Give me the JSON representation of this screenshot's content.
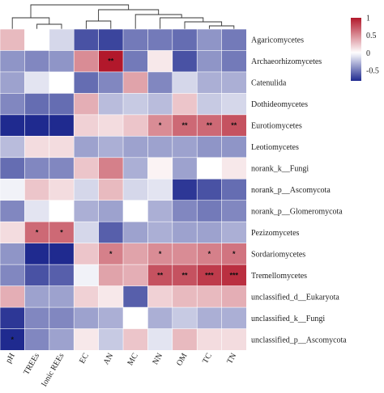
{
  "chart_data": {
    "type": "heatmap",
    "columns": [
      "pH",
      "TREEs",
      "Ionic REEs",
      "EC",
      "AN",
      "MC",
      "NN",
      "OM",
      "TC",
      "TN"
    ],
    "rows": [
      "Agaricomycetes",
      "Archaeorhizomycetes",
      "Catenulida",
      "Dothideomycetes",
      "Eurotiomycetes",
      "Leotiomycetes",
      "norank_k__Fungi",
      "norank_p__Ascomycota",
      "norank_p__Glomeromycota",
      "Pezizomycetes",
      "Sordariomycetes",
      "Tremellomycetes",
      "unclassified_d__Eukaryota",
      "unclassified_k__Fungi",
      "unclassified_p__Ascomycota"
    ],
    "values": [
      [
        0.3,
        0.0,
        -0.15,
        -0.65,
        -0.7,
        -0.5,
        -0.5,
        -0.55,
        -0.4,
        -0.5
      ],
      [
        -0.4,
        -0.45,
        -0.4,
        0.5,
        1.0,
        -0.5,
        0.1,
        -0.65,
        -0.4,
        -0.5
      ],
      [
        -0.35,
        -0.1,
        0.0,
        -0.55,
        -0.45,
        0.4,
        -0.45,
        -0.15,
        -0.3,
        -0.3
      ],
      [
        -0.45,
        -0.55,
        -0.55,
        0.35,
        -0.25,
        -0.2,
        -0.25,
        0.25,
        -0.2,
        -0.15
      ],
      [
        -0.85,
        -0.85,
        -0.8,
        0.2,
        0.15,
        0.25,
        0.5,
        0.65,
        0.65,
        0.75
      ],
      [
        -0.25,
        0.15,
        0.15,
        -0.35,
        -0.3,
        -0.35,
        -0.35,
        -0.35,
        -0.4,
        -0.4
      ],
      [
        -0.55,
        -0.45,
        -0.45,
        0.25,
        0.55,
        -0.3,
        0.05,
        -0.35,
        0.0,
        0.1
      ],
      [
        -0.05,
        0.25,
        0.15,
        -0.15,
        0.3,
        -0.15,
        -0.1,
        -0.75,
        -0.65,
        -0.55
      ],
      [
        -0.45,
        -0.1,
        0.0,
        -0.3,
        -0.35,
        0.0,
        -0.3,
        -0.45,
        -0.5,
        -0.45
      ],
      [
        0.15,
        0.65,
        0.65,
        -0.15,
        -0.6,
        -0.35,
        -0.3,
        -0.35,
        -0.35,
        -0.3
      ],
      [
        -0.4,
        -0.85,
        -0.8,
        0.25,
        0.55,
        0.4,
        0.5,
        0.5,
        0.55,
        0.6
      ],
      [
        -0.45,
        -0.65,
        -0.6,
        -0.05,
        0.4,
        0.35,
        0.75,
        0.75,
        0.85,
        0.9
      ],
      [
        0.35,
        -0.35,
        -0.35,
        0.2,
        0.1,
        -0.6,
        0.2,
        0.3,
        0.3,
        0.35
      ],
      [
        -0.75,
        -0.45,
        -0.45,
        -0.35,
        -0.3,
        0.0,
        -0.3,
        -0.2,
        -0.3,
        -0.3
      ],
      [
        -0.85,
        -0.45,
        -0.35,
        0.1,
        -0.2,
        0.25,
        -0.1,
        0.3,
        0.15,
        0.15
      ]
    ],
    "significance": [
      [
        "",
        "",
        "",
        "",
        "",
        "",
        "",
        "",
        "",
        ""
      ],
      [
        "",
        "",
        "",
        "",
        "**",
        "",
        "",
        "",
        "",
        ""
      ],
      [
        "",
        "",
        "",
        "",
        "",
        "",
        "",
        "",
        "",
        ""
      ],
      [
        "",
        "",
        "",
        "",
        "",
        "",
        "",
        "",
        "",
        ""
      ],
      [
        "",
        "",
        "",
        "",
        "",
        "",
        "*",
        "**",
        "**",
        "**"
      ],
      [
        "",
        "",
        "",
        "",
        "",
        "",
        "",
        "",
        "",
        ""
      ],
      [
        "",
        "",
        "",
        "",
        "",
        "",
        "",
        "",
        "",
        ""
      ],
      [
        "",
        "",
        "",
        "",
        "",
        "",
        "",
        "",
        "",
        ""
      ],
      [
        "",
        "",
        "",
        "",
        "",
        "",
        "",
        "",
        "",
        ""
      ],
      [
        "",
        "*",
        "*",
        "",
        "",
        "",
        "",
        "",
        "",
        ""
      ],
      [
        "",
        "",
        "",
        "",
        "*",
        "",
        "*",
        "",
        "*",
        "*"
      ],
      [
        "",
        "",
        "",
        "",
        "",
        "",
        "**",
        "**",
        "***",
        "***"
      ],
      [
        "",
        "",
        "",
        "",
        "",
        "",
        "",
        "",
        "",
        ""
      ],
      [
        "",
        "",
        "",
        "",
        "",
        "",
        "",
        "",
        "",
        ""
      ],
      [
        "*",
        "",
        "",
        "",
        "",
        "",
        "",
        "",
        "",
        ""
      ]
    ],
    "colorbar": {
      "min": -0.8,
      "max": 1.0,
      "ticks": [
        "1",
        "0.5",
        "0",
        "-0.5"
      ],
      "tick_values": [
        1,
        0.5,
        0,
        -0.5
      ],
      "colors": {
        "low": "#1f2a8f",
        "mid": "#ffffff",
        "high": "#b2182b"
      }
    },
    "column_dendrogram": true,
    "title": "",
    "xlabel": "",
    "ylabel": ""
  }
}
